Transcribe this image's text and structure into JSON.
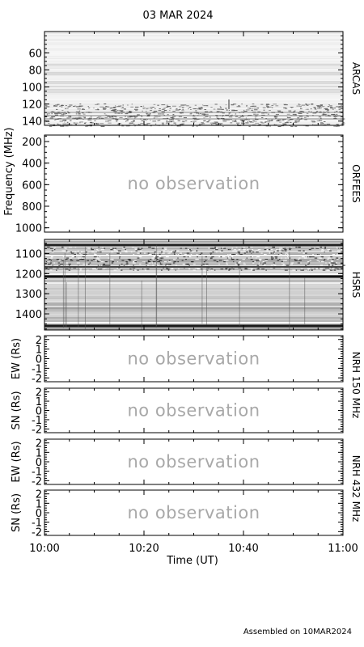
{
  "chart_data": {
    "type": "heatmap",
    "title": "03 MAR 2024",
    "xlabel": "Time (UT)",
    "x_range": [
      "10:00",
      "11:00"
    ],
    "x_ticks": [
      "10:00",
      "10:20",
      "10:40",
      "11:00"
    ],
    "footer": "Assembled on 10MAR2024",
    "freq_label": "Frequency (MHz)",
    "nrh150_label": "NRH 150 MHz",
    "nrh432_label": "NRH 432 MHz",
    "panels": [
      {
        "id": "arcas",
        "name": "ARCAS",
        "status": "observed",
        "yrange": [
          35,
          145
        ],
        "yticks": [
          60,
          80,
          100,
          120,
          140
        ],
        "ylabel": ""
      },
      {
        "id": "orfees",
        "name": "ORFEES",
        "status": "no observation",
        "yrange": [
          140,
          1040
        ],
        "yticks": [
          200,
          400,
          600,
          800,
          1000
        ],
        "ylabel": ""
      },
      {
        "id": "hsrs",
        "name": "HSRS",
        "status": "observed",
        "yrange": [
          1030,
          1480
        ],
        "yticks": [
          1100,
          1200,
          1300,
          1400
        ],
        "ylabel": ""
      },
      {
        "id": "nrh150ew",
        "name": "",
        "status": "no observation",
        "yrange": [
          -2.4,
          2.4
        ],
        "yticks": [
          2,
          1,
          0,
          -1,
          -2
        ],
        "ylabel": "EW (Rs)"
      },
      {
        "id": "nrh150sn",
        "name": "",
        "status": "no observation",
        "yrange": [
          -2.4,
          2.4
        ],
        "yticks": [
          2,
          1,
          0,
          -1,
          -2
        ],
        "ylabel": "SN (Rs)"
      },
      {
        "id": "nrh432ew",
        "name": "",
        "status": "no observation",
        "yrange": [
          -2.4,
          2.4
        ],
        "yticks": [
          2,
          1,
          0,
          -1,
          -2
        ],
        "ylabel": "EW (Rs)"
      },
      {
        "id": "nrh432sn",
        "name": "",
        "status": "no observation",
        "yrange": [
          -2.4,
          2.4
        ],
        "yticks": [
          2,
          1,
          0,
          -1,
          -2
        ],
        "ylabel": "SN (Rs)"
      }
    ]
  }
}
